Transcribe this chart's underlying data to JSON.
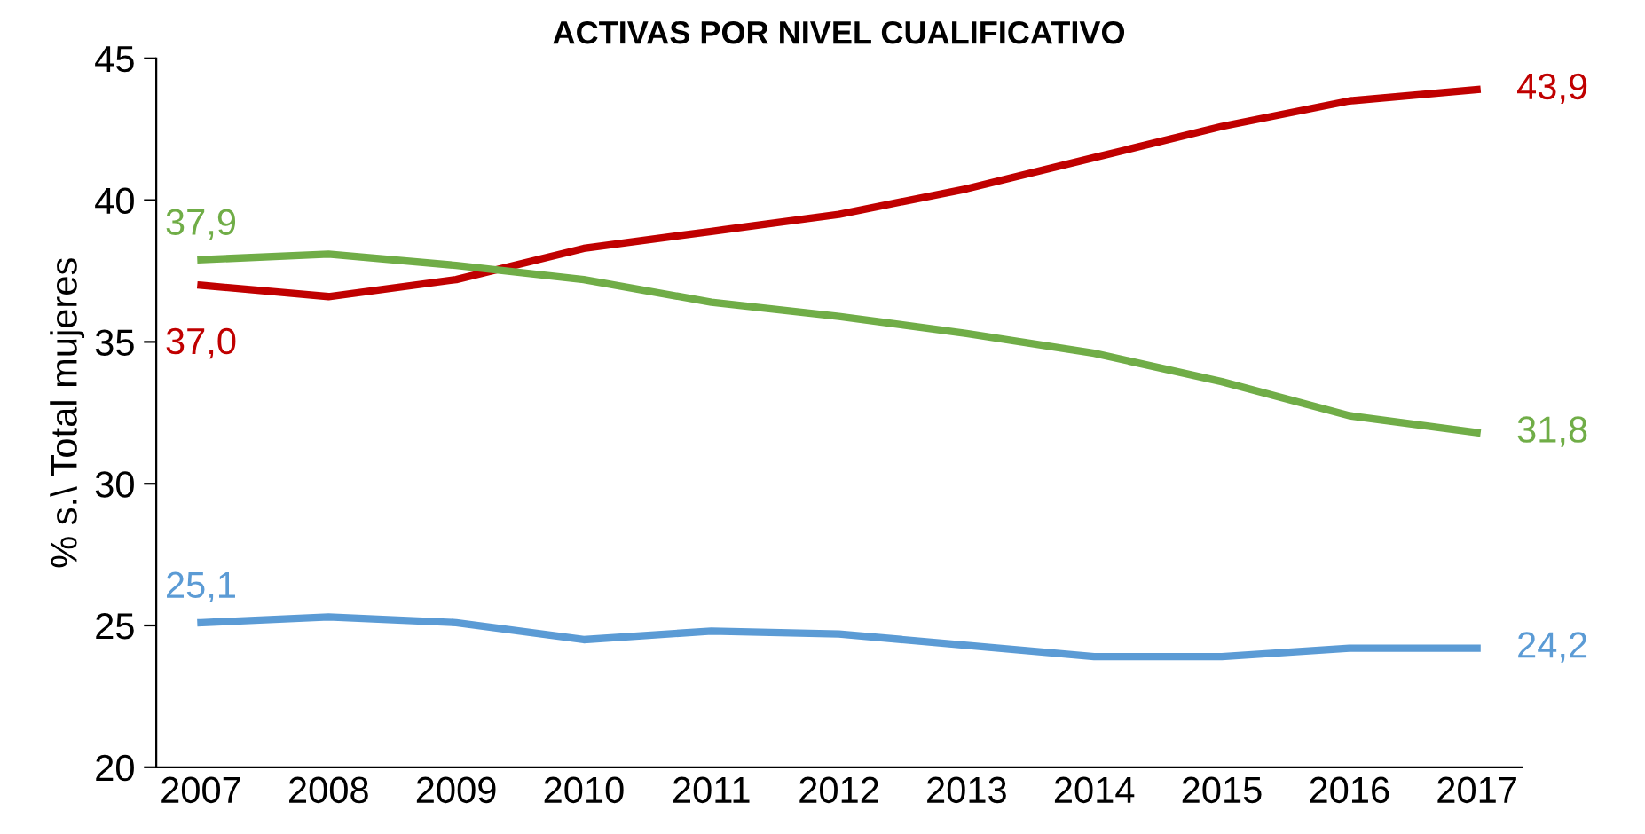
{
  "chart_data": {
    "type": "line",
    "title": "ACTIVAS POR NIVEL CUALIFICATIVO",
    "ylabel": "% s.\\ Total mujeres",
    "categories": [
      "2007",
      "2008",
      "2009",
      "2010",
      "2011",
      "2012",
      "2013",
      "2014",
      "2015",
      "2016",
      "2017"
    ],
    "ylim": [
      20,
      45
    ],
    "yticks": [
      20,
      25,
      30,
      35,
      40,
      45
    ],
    "grid": false,
    "legend": false,
    "marker": "none",
    "line_style": "solid",
    "series": [
      {
        "color": "#c00000",
        "values": [
          37.0,
          36.6,
          37.2,
          38.3,
          38.9,
          39.5,
          40.4,
          41.5,
          42.6,
          43.5,
          43.9
        ],
        "value_labels": [
          "37,0",
          null,
          null,
          null,
          null,
          null,
          null,
          null,
          null,
          null,
          "43,9"
        ]
      },
      {
        "color": "#70ad47",
        "values": [
          37.9,
          38.1,
          37.7,
          37.2,
          36.4,
          35.9,
          35.3,
          34.6,
          33.6,
          32.4,
          31.8
        ],
        "value_labels": [
          "37,9",
          null,
          null,
          null,
          null,
          null,
          null,
          null,
          null,
          null,
          "31,8"
        ]
      },
      {
        "color": "#5b9bd5",
        "values": [
          25.1,
          25.3,
          25.1,
          24.5,
          24.8,
          24.7,
          24.3,
          23.9,
          23.9,
          24.2,
          24.2
        ],
        "value_labels": [
          "25,1",
          null,
          null,
          null,
          null,
          null,
          null,
          null,
          null,
          null,
          "24,2"
        ]
      }
    ]
  }
}
